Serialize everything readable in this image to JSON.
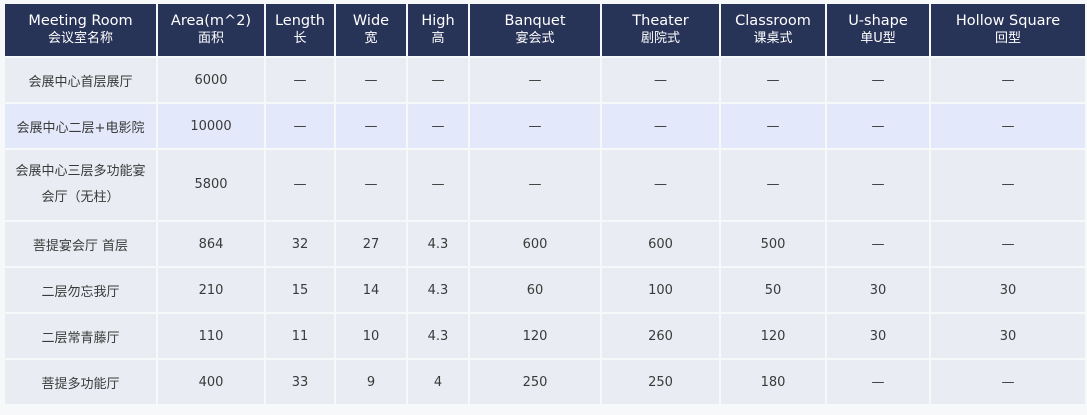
{
  "table": {
    "columns": [
      {
        "en": "Meeting Room",
        "zh": "会议室名称"
      },
      {
        "en": "Area(m^2)",
        "zh": "面积"
      },
      {
        "en": "Length",
        "zh": "长"
      },
      {
        "en": "Wide",
        "zh": "宽"
      },
      {
        "en": "High",
        "zh": "高"
      },
      {
        "en": "Banquet",
        "zh": "宴会式"
      },
      {
        "en": "Theater",
        "zh": "剧院式"
      },
      {
        "en": "Classroom",
        "zh": "课桌式"
      },
      {
        "en": "U-shape",
        "zh": "单U型"
      },
      {
        "en": "Hollow Square",
        "zh": "回型"
      }
    ],
    "highlighted_row": 1,
    "rows": [
      [
        "会展中心首层展厅",
        "6000",
        "—",
        "—",
        "—",
        "—",
        "—",
        "—",
        "—",
        "—"
      ],
      [
        "会展中心二层+电影院",
        "10000",
        "—",
        "—",
        "—",
        "—",
        "—",
        "—",
        "—",
        "—"
      ],
      [
        "会展中心三层多功能宴会厅（无柱）",
        "5800",
        "—",
        "—",
        "—",
        "—",
        "—",
        "—",
        "—",
        "—"
      ],
      [
        "菩提宴会厅 首层",
        "864",
        "32",
        "27",
        "4.3",
        "600",
        "600",
        "500",
        "—",
        "—"
      ],
      [
        "二层勿忘我厅",
        "210",
        "15",
        "14",
        "4.3",
        "60",
        "100",
        "50",
        "30",
        "30"
      ],
      [
        "二层常青藤厅",
        "110",
        "11",
        "10",
        "4.3",
        "120",
        "260",
        "120",
        "30",
        "30"
      ],
      [
        "菩提多功能厅",
        "400",
        "33",
        "9",
        "4",
        "250",
        "250",
        "180",
        "—",
        "—"
      ]
    ]
  },
  "colors": {
    "header_bg": "#283358",
    "row_bg": "#e9edf3",
    "highlight_bg": "#e3e9fb"
  }
}
